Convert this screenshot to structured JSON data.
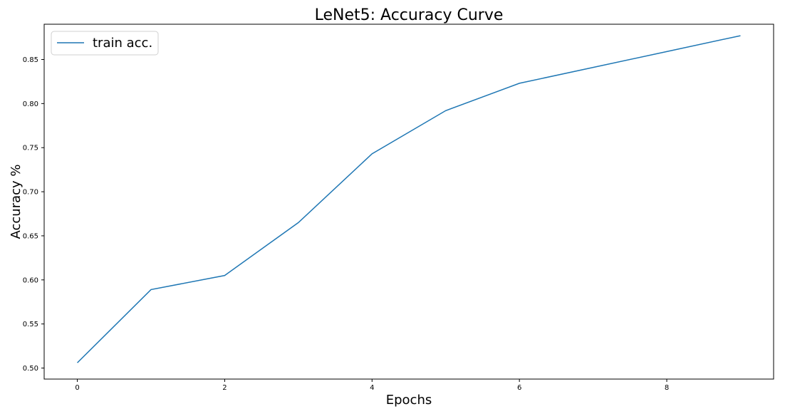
{
  "chart_data": {
    "type": "line",
    "title": "LeNet5: Accuracy Curve",
    "xlabel": "Epochs",
    "ylabel": "Accuracy %",
    "xlim": [
      -0.45,
      9.45
    ],
    "ylim": [
      0.4875,
      0.89
    ],
    "grid": false,
    "legend_position": "top-left",
    "x_ticks": [
      0,
      2,
      4,
      6,
      8
    ],
    "x_tick_labels": [
      "0",
      "2",
      "4",
      "6",
      "8"
    ],
    "y_ticks": [
      0.5,
      0.55,
      0.6,
      0.65,
      0.7,
      0.75,
      0.8,
      0.85
    ],
    "y_tick_labels": [
      "0.50",
      "0.55",
      "0.60",
      "0.65",
      "0.70",
      "0.75",
      "0.80",
      "0.85"
    ],
    "series": [
      {
        "name": "train acc.",
        "color": "#1f77b4",
        "x": [
          0,
          1,
          2,
          3,
          4,
          5,
          6,
          7,
          8,
          9
        ],
        "values": [
          0.506,
          0.589,
          0.605,
          0.665,
          0.743,
          0.792,
          0.823,
          0.841,
          0.859,
          0.877
        ]
      }
    ]
  }
}
